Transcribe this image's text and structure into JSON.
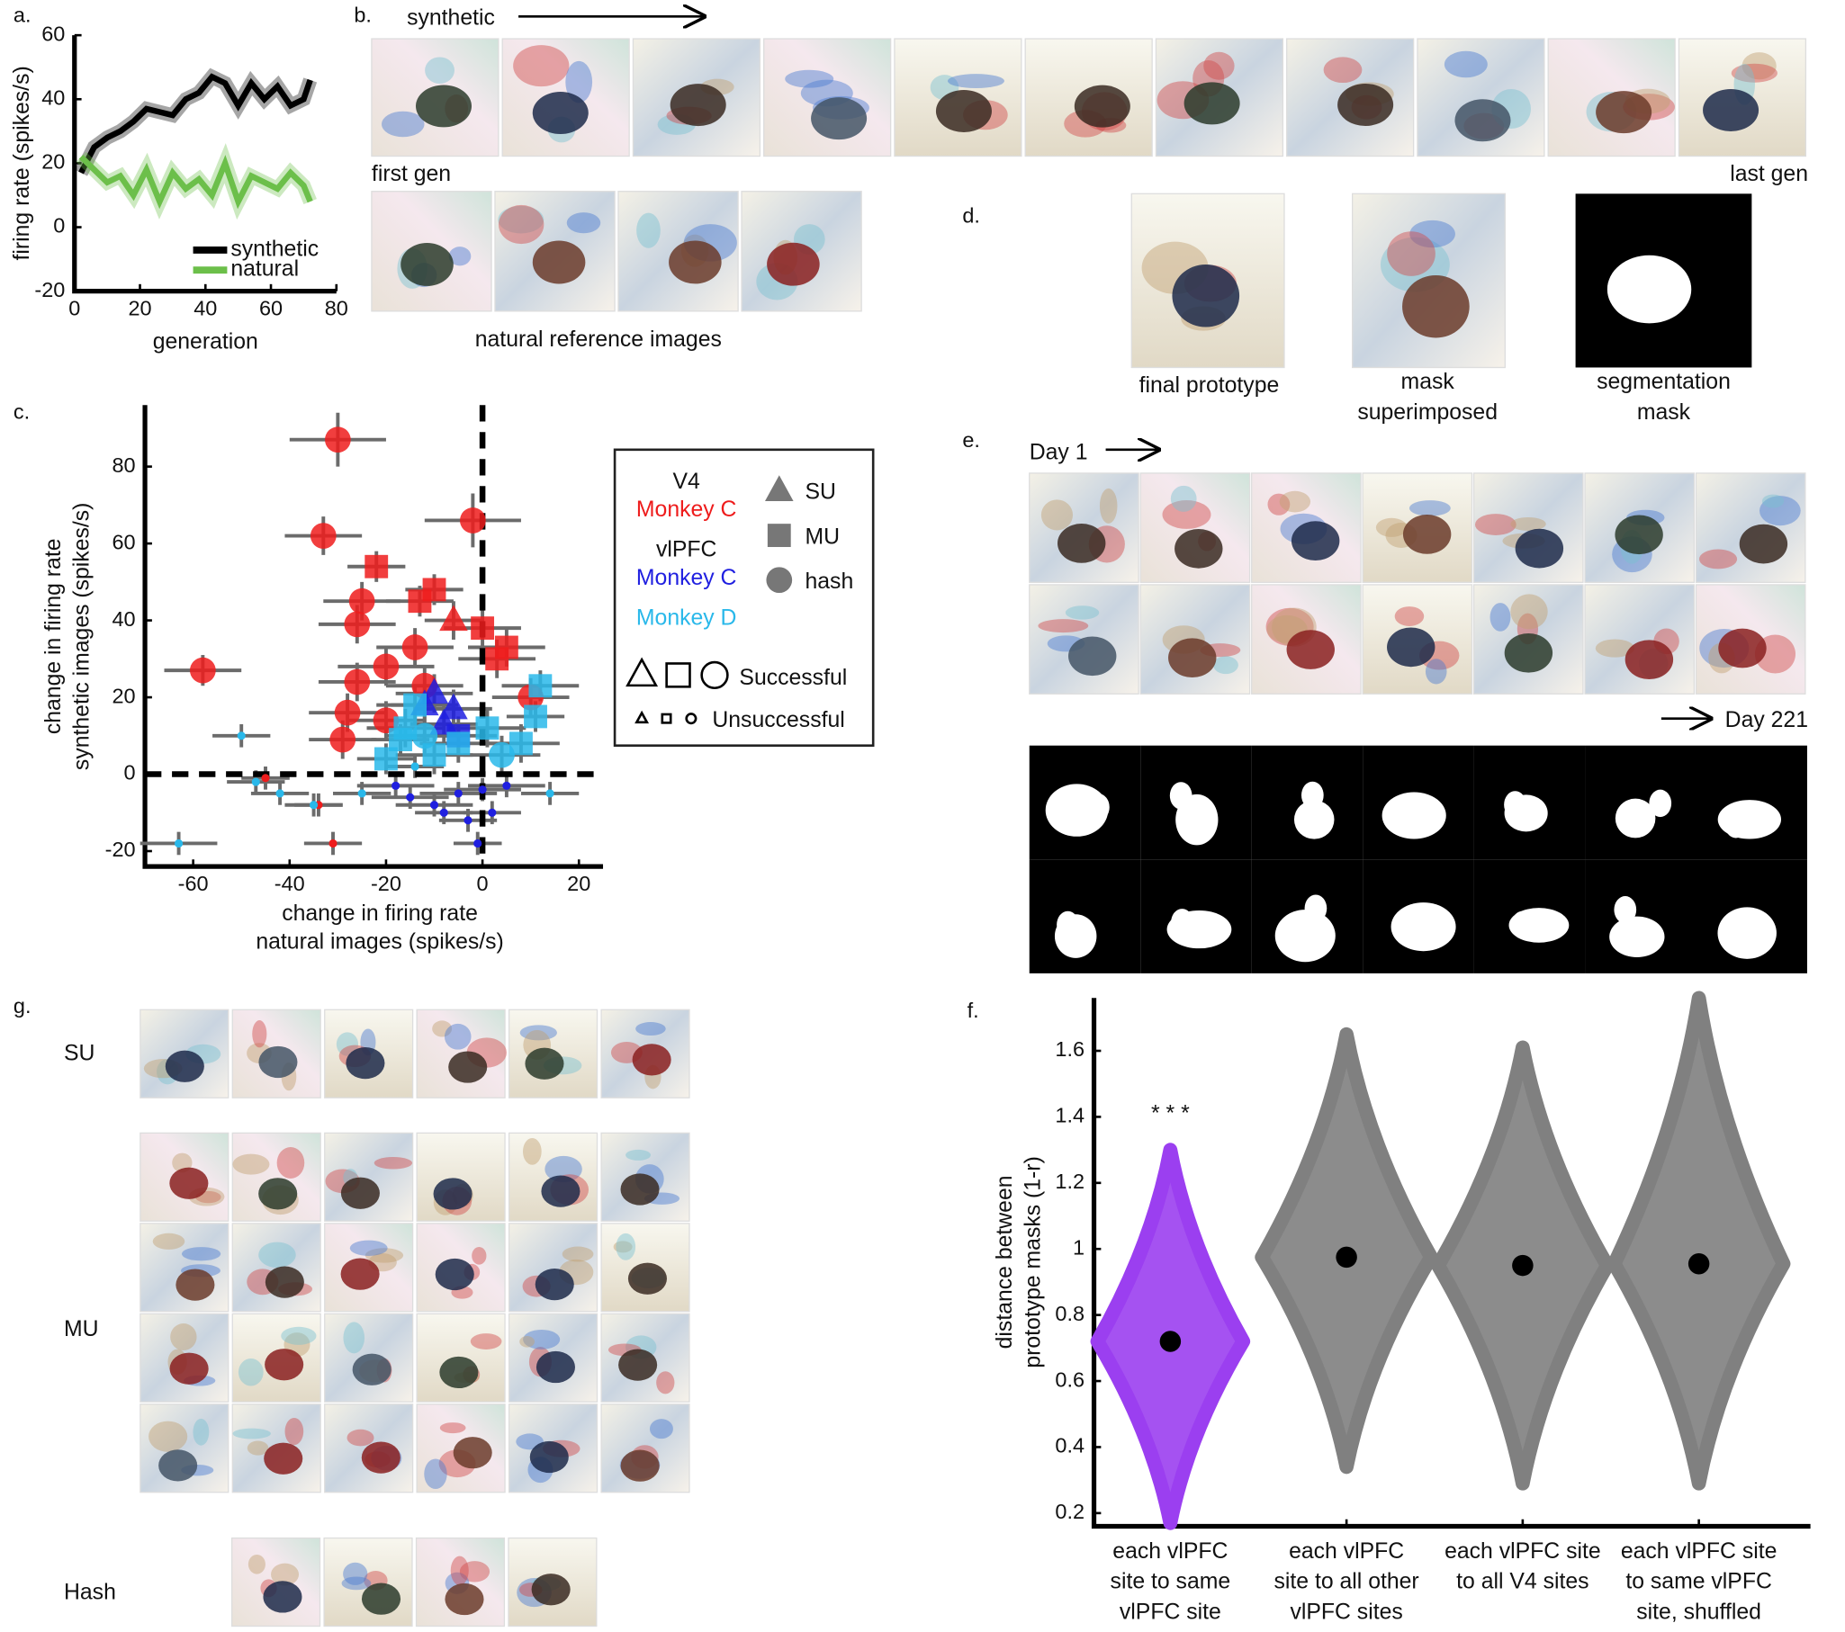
{
  "panel_labels": [
    "a.",
    "b.",
    "c.",
    "d.",
    "e.",
    "f.",
    "g."
  ],
  "panel_b": {
    "direction": "synthetic",
    "first": "first gen",
    "last": "last gen",
    "natural": "natural reference images"
  },
  "panel_d": {
    "prototype": "final prototype",
    "superimposed": [
      "mask",
      "superimposed"
    ],
    "segmentation": [
      "segmentation",
      "mask"
    ]
  },
  "panel_e": {
    "start": "Day 1",
    "end": "Day 221"
  },
  "panel_g": {
    "rows": [
      "SU",
      "MU",
      "Hash"
    ]
  },
  "chart_data": [
    {
      "type": "line",
      "xlabel": "generation",
      "ylabel": "firing rate (spikes/s)",
      "x": [
        2,
        6,
        10,
        14,
        18,
        22,
        26,
        30,
        34,
        38,
        42,
        46,
        50,
        54,
        58,
        62,
        66,
        70,
        72
      ],
      "series": [
        {
          "name": "synthetic",
          "color": "#000000",
          "values": [
            17,
            25,
            28,
            30,
            33,
            37,
            36,
            35,
            40,
            42,
            47,
            45,
            38,
            45,
            40,
            44,
            38,
            40,
            46
          ]
        },
        {
          "name": "natural",
          "color": "#6cbf4a",
          "values": [
            22,
            18,
            14,
            16,
            10,
            18,
            8,
            17,
            12,
            15,
            10,
            20,
            8,
            16,
            14,
            12,
            17,
            13,
            8
          ]
        }
      ],
      "xlim": [
        0,
        80
      ],
      "xticks": [
        0,
        20,
        40,
        60,
        80
      ],
      "ylim": [
        -20,
        60
      ],
      "yticks": [
        -20,
        0,
        20,
        40,
        60
      ]
    },
    {
      "type": "scatter",
      "xlabel": [
        "change in firing rate",
        "natural images (spikes/s)"
      ],
      "ylabel": [
        "change in firing rate",
        "synthetic images (spikes/s)"
      ],
      "xlim": [
        -70,
        25
      ],
      "xticks": [
        -60,
        -40,
        -20,
        0,
        20
      ],
      "ylim": [
        -24,
        96
      ],
      "yticks": [
        -20,
        0,
        20,
        40,
        60,
        80
      ],
      "zero_lines": true,
      "shape_legend": [
        "SU",
        "MU",
        "hash"
      ],
      "shape_keys": [
        "triangle",
        "square",
        "circle"
      ],
      "size_legend": [
        "Successful",
        "Unsuccessful"
      ],
      "series": [
        {
          "group": "V4",
          "name": "Monkey C",
          "color": "#ee1c1c",
          "x": [
            -30,
            -33,
            -2,
            -58,
            -25,
            -26,
            -26,
            -28,
            -29,
            -20,
            -14,
            -12,
            -20,
            10,
            -22,
            -10,
            -13,
            0,
            5,
            3,
            -6,
            -31,
            -45,
            -34
          ],
          "values": [
            87,
            62,
            66,
            27,
            45,
            39,
            24,
            16,
            9,
            28,
            33,
            23,
            14,
            20,
            54,
            48,
            45,
            38,
            33,
            30,
            40,
            -18,
            -1,
            -8
          ],
          "xerr": [
            10,
            8,
            10,
            8,
            8,
            8,
            8,
            8,
            7,
            10,
            8,
            8,
            8,
            8,
            6,
            6,
            7,
            8,
            8,
            8,
            6,
            6,
            5,
            5
          ],
          "yerr": [
            7,
            5,
            7,
            4,
            5,
            5,
            5,
            5,
            5,
            5,
            5,
            5,
            5,
            5,
            4,
            4,
            4,
            5,
            5,
            5,
            5,
            3,
            3,
            3
          ],
          "shape": [
            "circle",
            "circle",
            "circle",
            "circle",
            "circle",
            "circle",
            "circle",
            "circle",
            "circle",
            "circle",
            "circle",
            "circle",
            "circle",
            "circle",
            "square",
            "square",
            "square",
            "square",
            "square",
            "square",
            "triangle",
            "circle",
            "circle",
            "circle"
          ],
          "success": [
            true,
            true,
            true,
            true,
            true,
            true,
            true,
            true,
            true,
            true,
            true,
            true,
            true,
            true,
            true,
            true,
            true,
            true,
            true,
            true,
            true,
            false,
            false,
            false
          ]
        },
        {
          "group": "vlPFC",
          "name": "Monkey C",
          "color": "#1f1fe0",
          "x": [
            -10,
            -12,
            -6,
            -8,
            -5,
            -15,
            -10,
            -5,
            0,
            5,
            -8,
            -3,
            2,
            -18,
            -1
          ],
          "values": [
            21,
            18,
            17,
            13,
            10,
            -6,
            -8,
            -5,
            -4,
            -3,
            -10,
            -12,
            -10,
            -3,
            -18
          ],
          "xerr": [
            8,
            7,
            8,
            7,
            8,
            8,
            8,
            8,
            8,
            8,
            6,
            6,
            6,
            8,
            5
          ],
          "yerr": [
            5,
            5,
            5,
            5,
            5,
            3,
            3,
            3,
            3,
            3,
            3,
            3,
            3,
            3,
            3
          ],
          "shape": [
            "triangle",
            "triangle",
            "triangle",
            "triangle",
            "square",
            "circle",
            "circle",
            "circle",
            "circle",
            "circle",
            "circle",
            "circle",
            "circle",
            "circle",
            "circle"
          ],
          "success": [
            true,
            true,
            true,
            true,
            true,
            false,
            false,
            false,
            false,
            false,
            false,
            false,
            false,
            false,
            false
          ]
        },
        {
          "name": "Monkey D",
          "color": "#29b8ea",
          "x": [
            -14,
            -16,
            -10,
            -5,
            1,
            8,
            12,
            11,
            -20,
            -17,
            -12,
            4,
            -63,
            -50,
            -47,
            -42,
            -35,
            -25,
            -14,
            14
          ],
          "values": [
            18,
            12,
            5,
            8,
            12,
            8,
            23,
            15,
            4,
            9,
            10,
            5,
            -18,
            10,
            -2,
            -5,
            -8,
            -5,
            2,
            -5
          ],
          "xerr": [
            8,
            8,
            8,
            8,
            8,
            8,
            8,
            6,
            6,
            6,
            8,
            8,
            8,
            6,
            6,
            6,
            6,
            6,
            6,
            6
          ],
          "yerr": [
            5,
            5,
            5,
            5,
            5,
            5,
            4,
            4,
            4,
            4,
            5,
            5,
            3,
            3,
            3,
            3,
            3,
            3,
            3,
            3
          ],
          "shape": [
            "square",
            "square",
            "square",
            "square",
            "square",
            "square",
            "square",
            "square",
            "square",
            "square",
            "circle",
            "circle",
            "circle",
            "circle",
            "circle",
            "circle",
            "circle",
            "circle",
            "circle",
            "circle"
          ],
          "success": [
            true,
            true,
            true,
            true,
            true,
            true,
            true,
            true,
            true,
            true,
            true,
            true,
            false,
            false,
            false,
            false,
            false,
            false,
            false,
            false
          ]
        }
      ]
    },
    {
      "type": "violin",
      "ylabel": [
        "distance between",
        "prototype masks (1-r)"
      ],
      "categories": [
        [
          "each vlPFC",
          "site to same",
          "vlPFC site"
        ],
        [
          "each vlPFC",
          "site to all other",
          "vlPFC sites"
        ],
        [
          "each vlPFC site",
          "to all V4 sites"
        ],
        [
          "each vlPFC site",
          "to same vlPFC",
          "site, shuffled"
        ]
      ],
      "mean": [
        0.72,
        0.975,
        0.95,
        0.955
      ],
      "min": [
        0.17,
        0.34,
        0.29,
        0.29
      ],
      "max": [
        1.3,
        1.65,
        1.61,
        1.76
      ],
      "colors": [
        "#9b3ff0",
        "#808080",
        "#808080",
        "#808080"
      ],
      "annotation": "* * *",
      "ylim": [
        0.16,
        1.76
      ],
      "yticks": [
        0.2,
        0.4,
        0.6,
        0.8,
        1,
        1.2,
        1.4,
        1.6
      ]
    }
  ]
}
